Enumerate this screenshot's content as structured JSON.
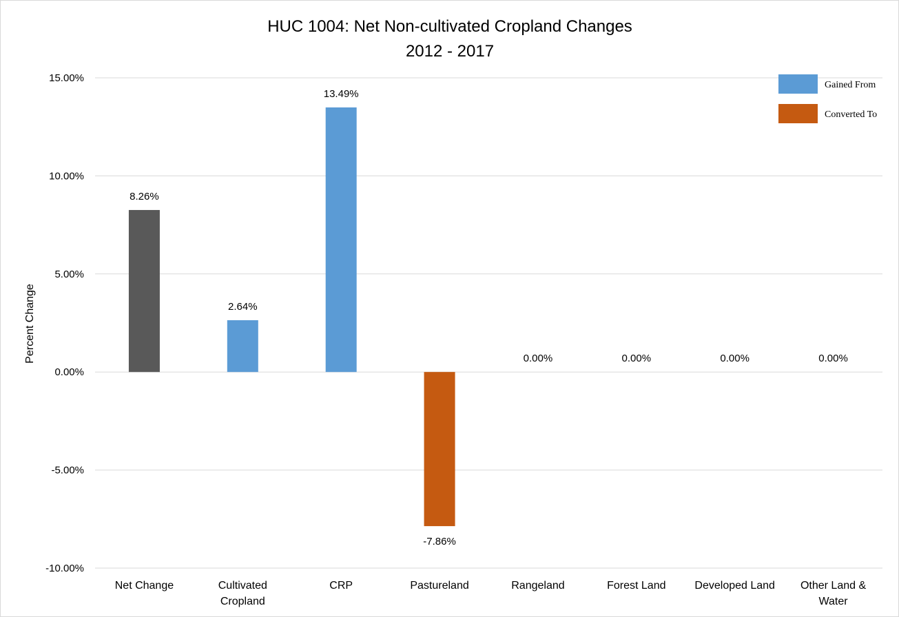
{
  "chart_data": {
    "type": "bar",
    "title": "HUC 1004: Net Non-cultivated Cropland Changes",
    "subtitle": "2012 - 2017",
    "ylabel": "Percent Change",
    "xlabel": "",
    "ylim": [
      -10,
      15
    ],
    "yticks": [
      15,
      10,
      5,
      0,
      -5,
      -10
    ],
    "ytick_labels": [
      "15.00%",
      "10.00%",
      "5.00%",
      "0.00%",
      "-5.00%",
      "-10.00%"
    ],
    "grid": true,
    "legend_position": "top-right",
    "legend": [
      {
        "name": "Gained From",
        "color": "#5b9bd5"
      },
      {
        "name": "Converted To",
        "color": "#c55a11"
      }
    ],
    "categories": [
      [
        "Net Change"
      ],
      [
        "Cultivated",
        "Cropland"
      ],
      [
        "CRP"
      ],
      [
        "Pastureland"
      ],
      [
        "Rangeland"
      ],
      [
        "Forest Land"
      ],
      [
        "Developed Land"
      ],
      [
        "Other Land &",
        "Water"
      ]
    ],
    "values": [
      8.26,
      2.64,
      13.49,
      -7.86,
      0.0,
      0.0,
      0.0,
      0.0
    ],
    "value_labels": [
      "8.26%",
      "2.64%",
      "13.49%",
      "-7.86%",
      "0.00%",
      "0.00%",
      "0.00%",
      "0.00%"
    ],
    "bar_colors": [
      "#595959",
      "#5b9bd5",
      "#5b9bd5",
      "#c55a11",
      "#5b9bd5",
      "#5b9bd5",
      "#5b9bd5",
      "#5b9bd5"
    ]
  }
}
